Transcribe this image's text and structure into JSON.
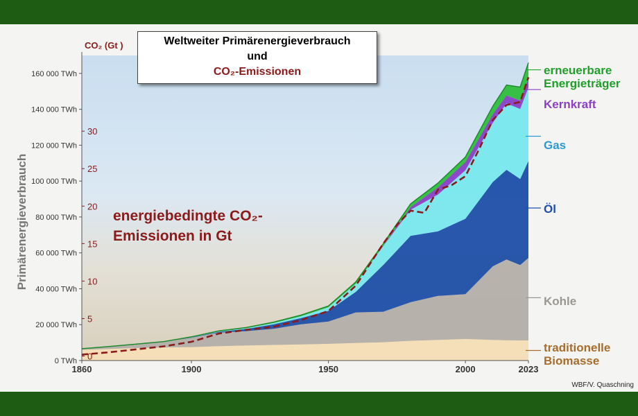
{
  "title": {
    "line1": "Weltweiter Primärenergieverbrauch",
    "line2": "und",
    "line3": "CO₂-Emissionen"
  },
  "credit": "WBF/V. Quaschning",
  "colors": {
    "frame": "#1e5c14",
    "biomasse": "#f6dfb8",
    "kohle": "#b0aca6",
    "oel": "#1e4fa8",
    "gas": "#79e8ee",
    "kernkraft": "#8a3fc6",
    "erneuerbare": "#2fbe3c",
    "co2": "#8b1a1a"
  },
  "chart_data": {
    "type": "area",
    "stacked": true,
    "ylabel": "Primärenergieverbrauch",
    "y2label": "CO₂ (Gt )",
    "xlim": [
      1860,
      2023
    ],
    "ylim": [
      0,
      170000
    ],
    "y2lim": [
      -0.6,
      40.1
    ],
    "x_ticks": [
      "1860",
      "1900",
      "1950",
      "2000",
      "2023"
    ],
    "y_ticks": [
      "0 TWh",
      "20 000 TWh",
      "40 000 TWh",
      "60 000 TWh",
      "80 000 TWh",
      "100 000 TWh",
      "120 000 TWh",
      "140 000 TWh",
      "160 000 TWh"
    ],
    "y_tick_values": [
      0,
      20000,
      40000,
      60000,
      80000,
      100000,
      120000,
      140000,
      160000
    ],
    "y2_ticks": [
      "0",
      "5",
      "10",
      "15",
      "20",
      "25",
      "30"
    ],
    "y2_tick_values": [
      0,
      5,
      10,
      15,
      20,
      25,
      30
    ],
    "x": [
      1860,
      1870,
      1880,
      1890,
      1900,
      1910,
      1920,
      1930,
      1940,
      1950,
      1960,
      1970,
      1980,
      1990,
      2000,
      2010,
      2015,
      2020,
      2023
    ],
    "series": [
      {
        "key": "biomasse",
        "name": "traditionelle Biomasse",
        "label_lines": [
          "traditionelle",
          "Biomasse"
        ],
        "values": [
          6000,
          6500,
          7000,
          7300,
          7500,
          8000,
          8400,
          8700,
          9000,
          9300,
          9800,
          10200,
          11000,
          11500,
          12000,
          11500,
          11300,
          11200,
          11200
        ]
      },
      {
        "key": "kohle",
        "name": "Kohle",
        "label_lines": [
          "Kohle"
        ],
        "values": [
          600,
          1300,
          2200,
          3200,
          5200,
          7600,
          8000,
          9000,
          11200,
          12400,
          17000,
          17000,
          21500,
          24500,
          25000,
          41000,
          45000,
          42000,
          46000
        ]
      },
      {
        "key": "oel",
        "name": "Öl",
        "label_lines": [
          "Öl"
        ],
        "values": [
          0,
          0,
          0,
          0,
          200,
          400,
          1200,
          2500,
          3500,
          6000,
          11500,
          26000,
          37000,
          36000,
          42000,
          47000,
          50000,
          48000,
          54000
        ]
      },
      {
        "key": "gas",
        "name": "Gas",
        "label_lines": [
          "Gas"
        ],
        "values": [
          0,
          0,
          0,
          0,
          100,
          200,
          400,
          700,
          1000,
          2000,
          4500,
          10500,
          14500,
          20500,
          27000,
          33000,
          37000,
          39000,
          41000
        ]
      },
      {
        "key": "kernkraft",
        "name": "Kernkraft",
        "label_lines": [
          "Kernkraft"
        ],
        "values": [
          0,
          0,
          0,
          0,
          0,
          0,
          0,
          0,
          0,
          0,
          0,
          200,
          1500,
          4000,
          4600,
          4700,
          4400,
          4700,
          4800
        ]
      },
      {
        "key": "erneuerbare",
        "name": "erneuerbare Energieträger",
        "label_lines": [
          "erneuerbare",
          "Energieträger"
        ],
        "values": [
          0,
          0,
          0,
          100,
          200,
          300,
          400,
          500,
          600,
          700,
          1000,
          1200,
          1800,
          2400,
          2800,
          4500,
          5800,
          7500,
          9000
        ]
      }
    ],
    "co2_series": {
      "name": "energiebedingte CO₂-Emissionen in Gt",
      "label_line1": "energiebedingte CO₂-",
      "label_line2": "Emissionen in Gt",
      "x": [
        1860,
        1870,
        1880,
        1890,
        1900,
        1910,
        1920,
        1930,
        1940,
        1950,
        1960,
        1970,
        1975,
        1980,
        1985,
        1990,
        1995,
        2000,
        2005,
        2010,
        2015,
        2020,
        2023
      ],
      "values": [
        0.2,
        0.5,
        0.9,
        1.3,
        1.9,
        3.0,
        3.5,
        3.9,
        4.8,
        6.0,
        9.4,
        15.0,
        17.5,
        19.4,
        19.1,
        22.2,
        22.8,
        24.0,
        27.6,
        31.5,
        33.5,
        33.9,
        37.2
      ]
    }
  }
}
